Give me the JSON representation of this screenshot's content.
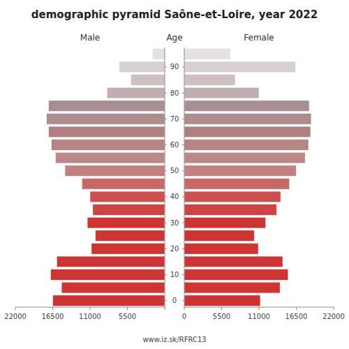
{
  "chart_data": {
    "type": "bar",
    "orientation": "horizontal",
    "title": "demographic pyramid Saône-et-Loire, year 2022",
    "ylabel": "Age",
    "annotations": [
      "www.iz.sk/RFRC13"
    ],
    "x": [
      0,
      5,
      10,
      15,
      20,
      25,
      30,
      35,
      40,
      45,
      50,
      55,
      60,
      65,
      70,
      75,
      80,
      85,
      90,
      95
    ],
    "series": [
      {
        "name": "Male",
        "colors": [
          "#cd3333",
          "#cd3535",
          "#cd3535",
          "#cd3535",
          "#cd3535",
          "#cd3535",
          "#cd3535",
          "#cd4444",
          "#cd5050",
          "#c86868",
          "#c28080",
          "#bc8888",
          "#b58585",
          "#b08080",
          "#ac8c8c",
          "#a89090",
          "#c0aeb0",
          "#cfc0c4",
          "#d8d0d2",
          "#e5e0e2"
        ],
        "values": [
          16500,
          15200,
          16800,
          15900,
          10800,
          10200,
          11400,
          10600,
          11000,
          12200,
          14700,
          16100,
          16700,
          17100,
          17400,
          17100,
          8500,
          5000,
          6700,
          1800
        ]
      },
      {
        "name": "Female",
        "colors": [
          "#cd3333",
          "#cd3535",
          "#cd3535",
          "#cd3535",
          "#cd3535",
          "#cd3535",
          "#cd3535",
          "#cd4444",
          "#cd5050",
          "#c86868",
          "#c28080",
          "#bc8888",
          "#b58585",
          "#b08080",
          "#ac8c8c",
          "#a89090",
          "#c0aeb0",
          "#cfc0c4",
          "#d8d0d2",
          "#e5e0e2"
        ],
        "values": [
          11200,
          14100,
          15300,
          14500,
          10900,
          10300,
          12000,
          13600,
          14200,
          15500,
          16500,
          17800,
          18300,
          18600,
          18700,
          18400,
          11000,
          7500,
          16400,
          6800
        ]
      }
    ],
    "xlim": [
      0,
      22000
    ],
    "xticks": [
      0,
      5500,
      11000,
      16500,
      22000
    ],
    "ylim": [
      -2.5,
      97.5
    ],
    "yticks": [
      0,
      10,
      20,
      30,
      40,
      50,
      60,
      70,
      80,
      90
    ]
  }
}
